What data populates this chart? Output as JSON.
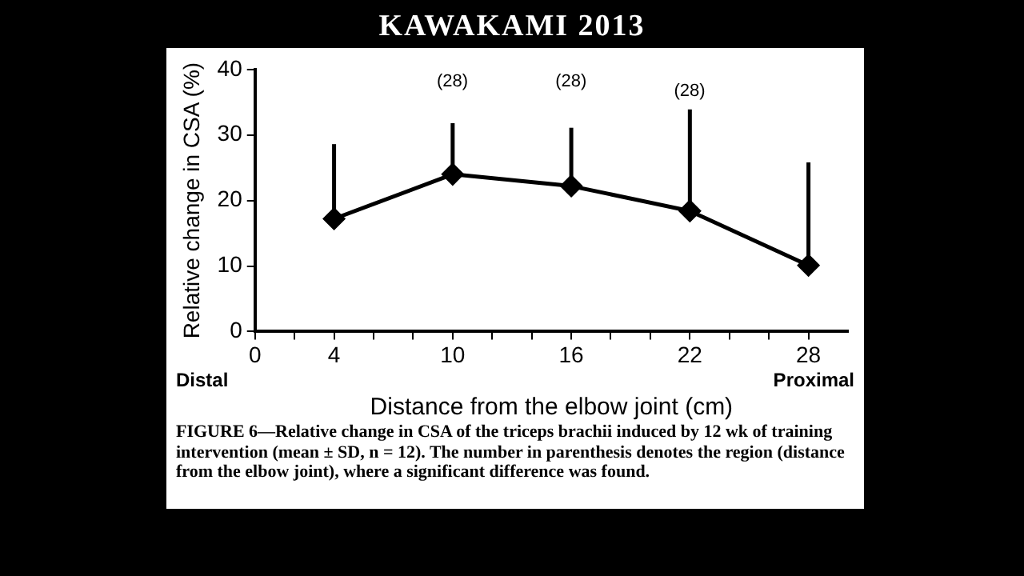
{
  "chart_data": {
    "type": "line",
    "title": "KAWAKAMI 2013",
    "xlabel": "Distance from the elbow joint (cm)",
    "ylabel": "Relative change in CSA (%)",
    "x": [
      4,
      10,
      16,
      22,
      28
    ],
    "series": [
      {
        "color": "#000000",
        "values": [
          17.2,
          24.0,
          22.2,
          18.4,
          10.1
        ],
        "errors": [
          [
            17.2,
            28.6
          ],
          [
            24.0,
            31.8
          ],
          [
            22.2,
            31.1
          ],
          [
            18.4,
            33.9
          ],
          [
            10.1,
            25.8
          ]
        ]
      }
    ],
    "xlim": [
      0,
      30
    ],
    "xticks": [
      0,
      {
        "value": 2,
        "label": null
      },
      4,
      {
        "value": 6,
        "label": null
      },
      {
        "value": 8,
        "label": null
      },
      10,
      {
        "value": 12,
        "label": null
      },
      {
        "value": 14,
        "label": null
      },
      16,
      {
        "value": 18,
        "label": null
      },
      {
        "value": 20,
        "label": null
      },
      22,
      {
        "value": 24,
        "label": null
      },
      {
        "value": 26,
        "label": null
      },
      28
    ],
    "ylim": [
      0,
      40
    ],
    "yticks": [
      0,
      10,
      20,
      30,
      40
    ],
    "marker": "diamond",
    "line_style": "solid",
    "grid": false,
    "legend": false,
    "annotations": [
      "(28)",
      "(28)",
      "(28)",
      "Distal",
      "Proximal",
      "FIGURE 6—Relative change in CSA of the triceps brachii induced by 12 wk of training intervention (mean ± SD, n = 12). The number in parenthesis denotes the region (distance from the elbow joint), where a significant difference was found."
    ]
  }
}
